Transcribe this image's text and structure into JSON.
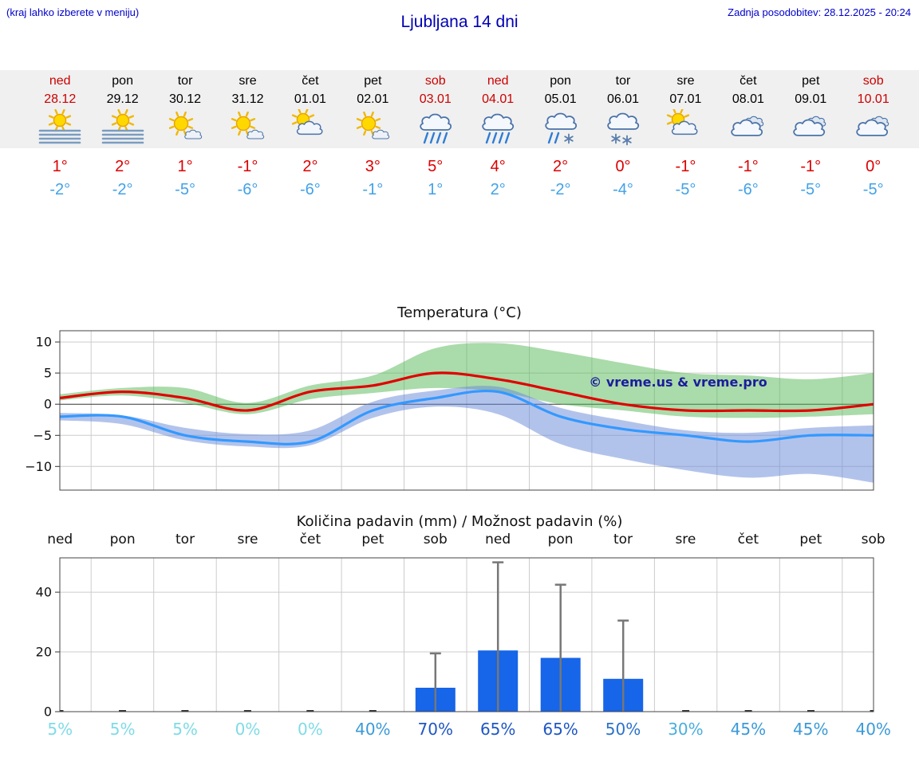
{
  "header": {
    "hint": "(kraj lahko izberete v meniju)",
    "title": "Ljubljana 14 dni",
    "updated": "Zadnja posodobitev: 28.12.2025 - 20:24"
  },
  "colors": {
    "header_blue": "#0000cc",
    "title_blue": "#0000b4",
    "weekend_red": "#cc0000",
    "weekday_black": "#000000",
    "temp_max_red": "#dd0000",
    "temp_min_blue": "#42a2e8",
    "strip_bg": "#f0f0f0",
    "bar_blue": "#1765e8",
    "whisker_gray": "#777777",
    "grid_gray": "#cccccc",
    "watermark_blue": "#1c1c9c"
  },
  "days": [
    {
      "name": "ned",
      "date": "28.12",
      "weekend": true,
      "icon": "sun-fog",
      "tmax": "1°",
      "tmin": "-2°"
    },
    {
      "name": "pon",
      "date": "29.12",
      "weekend": false,
      "icon": "sun-fog",
      "tmax": "2°",
      "tmin": "-2°"
    },
    {
      "name": "tor",
      "date": "30.12",
      "weekend": false,
      "icon": "mostly-sunny",
      "tmax": "1°",
      "tmin": "-5°"
    },
    {
      "name": "sre",
      "date": "31.12",
      "weekend": false,
      "icon": "mostly-sunny",
      "tmax": "-1°",
      "tmin": "-6°"
    },
    {
      "name": "čet",
      "date": "01.01",
      "weekend": false,
      "icon": "partly-cloudy",
      "tmax": "2°",
      "tmin": "-6°"
    },
    {
      "name": "pet",
      "date": "02.01",
      "weekend": false,
      "icon": "mostly-sunny",
      "tmax": "3°",
      "tmin": "-1°"
    },
    {
      "name": "sob",
      "date": "03.01",
      "weekend": true,
      "icon": "rain",
      "tmax": "5°",
      "tmin": "1°"
    },
    {
      "name": "ned",
      "date": "04.01",
      "weekend": true,
      "icon": "rain",
      "tmax": "4°",
      "tmin": "2°"
    },
    {
      "name": "pon",
      "date": "05.01",
      "weekend": false,
      "icon": "rain-snow",
      "tmax": "2°",
      "tmin": "-2°"
    },
    {
      "name": "tor",
      "date": "06.01",
      "weekend": false,
      "icon": "snow",
      "tmax": "0°",
      "tmin": "-4°"
    },
    {
      "name": "sre",
      "date": "07.01",
      "weekend": false,
      "icon": "partly-cloudy",
      "tmax": "-1°",
      "tmin": "-5°"
    },
    {
      "name": "čet",
      "date": "08.01",
      "weekend": false,
      "icon": "cloudy",
      "tmax": "-1°",
      "tmin": "-6°"
    },
    {
      "name": "pet",
      "date": "09.01",
      "weekend": false,
      "icon": "cloudy",
      "tmax": "-1°",
      "tmin": "-5°"
    },
    {
      "name": "sob",
      "date": "10.01",
      "weekend": true,
      "icon": "cloudy",
      "tmax": "0°",
      "tmin": "-5°"
    }
  ],
  "chart_data": [
    {
      "type": "line",
      "title": "Temperatura (°C)",
      "categories": [
        "ned",
        "pon",
        "tor",
        "sre",
        "čet",
        "pet",
        "sob",
        "ned",
        "pon",
        "tor",
        "sre",
        "čet",
        "pet",
        "sob"
      ],
      "series": [
        {
          "name": "max-temp",
          "color": "#e00000",
          "values": [
            1,
            2,
            1,
            -1,
            2,
            3,
            5,
            4,
            2,
            0,
            -1,
            -1,
            -1,
            0
          ]
        },
        {
          "name": "min-temp",
          "color": "#3399ff",
          "values": [
            -2,
            -2,
            -5,
            -6,
            -6,
            -1,
            1,
            2,
            -2,
            -4,
            -5,
            -6,
            -5,
            -5
          ]
        }
      ],
      "bands": [
        {
          "name": "max-range",
          "color": "#55b855",
          "opacity": 0.5,
          "upper": [
            1.6,
            2.6,
            2.6,
            0.2,
            3,
            4.6,
            9,
            9.8,
            8.4,
            6.6,
            5,
            4.6,
            4,
            5
          ],
          "lower": [
            0.6,
            1.4,
            0.2,
            -1.6,
            0.8,
            1.8,
            2.6,
            2,
            0,
            -1,
            -2,
            -2.2,
            -2,
            -1.6
          ]
        },
        {
          "name": "min-range",
          "color": "#6688d8",
          "opacity": 0.5,
          "upper": [
            -1.4,
            -1.8,
            -3.8,
            -4.8,
            -4.2,
            0.4,
            2.2,
            2.8,
            -0.6,
            -2.6,
            -4.2,
            -4.6,
            -3.8,
            -3.4
          ],
          "lower": [
            -2.6,
            -3.2,
            -5.8,
            -6.8,
            -6.6,
            -2.2,
            -0.4,
            -1.6,
            -6.4,
            -8.8,
            -10.6,
            -11.8,
            -11.2,
            -12.6
          ]
        }
      ],
      "ylim": [
        -13.8,
        11.8
      ],
      "yticks": [
        {
          "v": 10,
          "label": "10"
        },
        {
          "v": 5,
          "label": "5"
        },
        {
          "v": 0,
          "label": "0"
        },
        {
          "v": -5,
          "label": "−5"
        },
        {
          "v": -10,
          "label": "−10"
        }
      ],
      "watermark": "© vreme.us & vreme.pro",
      "grid": true,
      "legend": "none"
    },
    {
      "type": "bar",
      "title": "Količina padavin (mm) / Možnost padavin (%)",
      "categories": [
        "ned",
        "pon",
        "tor",
        "sre",
        "čet",
        "pet",
        "sob",
        "ned",
        "pon",
        "tor",
        "sre",
        "čet",
        "pet",
        "sob"
      ],
      "values": [
        0,
        0,
        0,
        0,
        0,
        0,
        8,
        20.5,
        18,
        11,
        0,
        0,
        0,
        0
      ],
      "whiskers": [
        0,
        0,
        0,
        0,
        0,
        0,
        19.5,
        50,
        42.5,
        30.5,
        0,
        0,
        0,
        0
      ],
      "probabilities": [
        {
          "label": "5%",
          "color": "#7fdbe6"
        },
        {
          "label": "5%",
          "color": "#7fdbe6"
        },
        {
          "label": "5%",
          "color": "#7fdbe6"
        },
        {
          "label": "0%",
          "color": "#7fdbe6"
        },
        {
          "label": "0%",
          "color": "#7fdbe6"
        },
        {
          "label": "40%",
          "color": "#3a9ad8"
        },
        {
          "label": "70%",
          "color": "#1e56c4"
        },
        {
          "label": "65%",
          "color": "#1e56c4"
        },
        {
          "label": "65%",
          "color": "#1e56c4"
        },
        {
          "label": "50%",
          "color": "#2b72c8"
        },
        {
          "label": "30%",
          "color": "#4aaede"
        },
        {
          "label": "45%",
          "color": "#3a9ad8"
        },
        {
          "label": "45%",
          "color": "#3a9ad8"
        },
        {
          "label": "40%",
          "color": "#3a9ad8"
        }
      ],
      "ylim": [
        0,
        51.5
      ],
      "yticks": [
        {
          "v": 0,
          "label": "0"
        },
        {
          "v": 20,
          "label": "20"
        },
        {
          "v": 40,
          "label": "40"
        }
      ],
      "grid": true
    }
  ]
}
